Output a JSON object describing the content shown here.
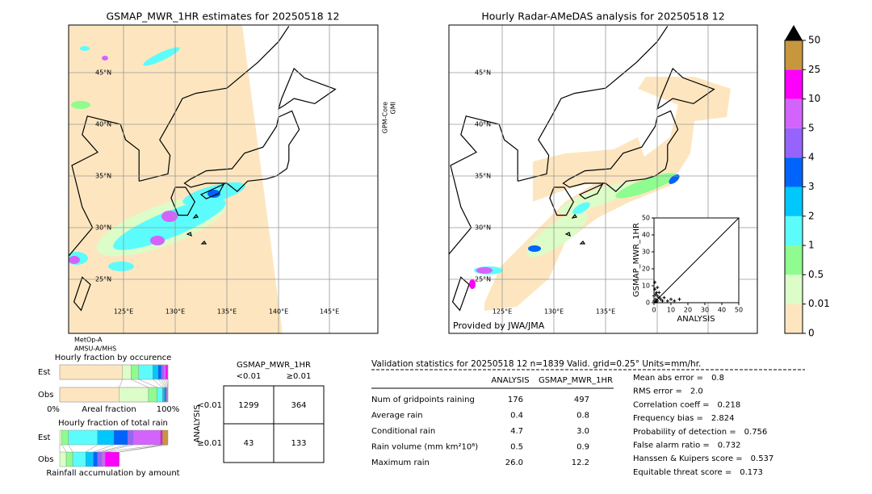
{
  "left_map": {
    "title": "GSMAP_MWR_1HR estimates for 20250518 12",
    "lat_labels": [
      "45°N",
      "40°N",
      "35°N",
      "30°N",
      "25°N"
    ],
    "lon_labels": [
      "125°E",
      "130°E",
      "135°E",
      "140°E",
      "145°E"
    ],
    "sensor_bottom": [
      "MetOp-A",
      "AMSU-A/MHS"
    ],
    "sensor_right": [
      "GPM-Core",
      "GMI"
    ]
  },
  "right_map": {
    "title": "Hourly Radar-AMeDAS analysis for 20250518 12",
    "lat_labels": [
      "45°N",
      "40°N",
      "35°N",
      "30°N",
      "25°N"
    ],
    "lon_labels": [
      "125°E",
      "130°E",
      "135°E"
    ],
    "credit": "Provided by JWA/JMA"
  },
  "colorbar": {
    "ticks": [
      0,
      0.01,
      0.5,
      1,
      2,
      3,
      4,
      5,
      10,
      25,
      50
    ],
    "colors": [
      "#fde6bf",
      "#dcfcc8",
      "#8efc8e",
      "#5cfcfc",
      "#00c8fc",
      "#0064fc",
      "#9664fc",
      "#d264fc",
      "#fc00fc",
      "#c8963c"
    ],
    "over_color": "#000000"
  },
  "chart_data": {
    "type": "scatter",
    "xlabel": "ANALYSIS",
    "ylabel": "GSMAP_MWR_1HR",
    "x": [
      0,
      0.5,
      1,
      1.5,
      2,
      3,
      0.5,
      1,
      2,
      4,
      5,
      6,
      8,
      10,
      12,
      15,
      3,
      1,
      0,
      2
    ],
    "values": [
      4,
      8,
      2,
      6,
      1,
      3,
      12,
      5,
      9,
      2,
      1,
      3,
      1,
      2,
      1,
      2,
      6,
      0.5,
      1,
      4
    ],
    "color": "#000000",
    "xlim": [
      0,
      50
    ],
    "ylim": [
      0,
      50
    ],
    "xticks": [
      0,
      10,
      20,
      30,
      40,
      50
    ],
    "yticks": [
      0,
      10,
      20,
      30,
      40,
      50
    ]
  },
  "fractions": {
    "occurrence_title": "Hourly fraction by occurence",
    "total_title": "Hourly fraction of total rain",
    "accumulation_title": "Rainfall accumulation by amount",
    "row_labels": [
      "Est",
      "Obs"
    ],
    "axis_labels": [
      "0%",
      "Areal fraction",
      "100%"
    ],
    "occurrence": [
      [
        0.58,
        0.08,
        0.07,
        0.13,
        0.05,
        0.03,
        0.02,
        0.02,
        0.02,
        0
      ],
      [
        0.55,
        0.27,
        0.08,
        0.05,
        0.02,
        0.01,
        0.01,
        0.01,
        0,
        0
      ]
    ],
    "total": [
      [
        0,
        0.02,
        0.06,
        0.27,
        0.15,
        0.13,
        0.05,
        0.25,
        0.02,
        0.05
      ],
      [
        0,
        0.06,
        0.06,
        0.12,
        0.07,
        0.04,
        0.04,
        0.03,
        0.13,
        0
      ]
    ]
  },
  "contingency": {
    "title": "GSMAP_MWR_1HR",
    "col_labels": [
      "<0.01",
      "≥0.01"
    ],
    "row_title": "ANALYSIS",
    "row_labels": [
      "<0.01",
      "≥0.01"
    ],
    "cells": [
      [
        1299,
        364
      ],
      [
        43,
        133
      ]
    ]
  },
  "validation": {
    "header": "Validation statistics for 20250518 12  n=1839 Valid. grid=0.25° Units=mm/hr.",
    "columns": [
      "ANALYSIS",
      "GSMAP_MWR_1HR"
    ],
    "rows": [
      {
        "label": "Num of gridpoints raining",
        "values": [
          "176",
          "497"
        ]
      },
      {
        "label": "Average rain",
        "values": [
          "0.4",
          "0.8"
        ]
      },
      {
        "label": "Conditional rain",
        "values": [
          "4.7",
          "3.0"
        ]
      },
      {
        "label": "Rain volume (mm km²10⁶)",
        "values": [
          "0.5",
          "0.9"
        ]
      },
      {
        "label": "Maximum rain",
        "values": [
          "26.0",
          "12.2"
        ]
      }
    ]
  },
  "scores": [
    {
      "label": "Mean abs error =",
      "value": "0.8"
    },
    {
      "label": "RMS error =",
      "value": "2.0"
    },
    {
      "label": "Correlation coeff =",
      "value": "0.218"
    },
    {
      "label": "Frequency bias =",
      "value": "2.824"
    },
    {
      "label": "Probability of detection =",
      "value": "0.756"
    },
    {
      "label": "False alarm ratio =",
      "value": "0.732"
    },
    {
      "label": "Hanssen & Kuipers score =",
      "value": "0.537"
    },
    {
      "label": "Equitable threat score =",
      "value": "0.173"
    }
  ]
}
